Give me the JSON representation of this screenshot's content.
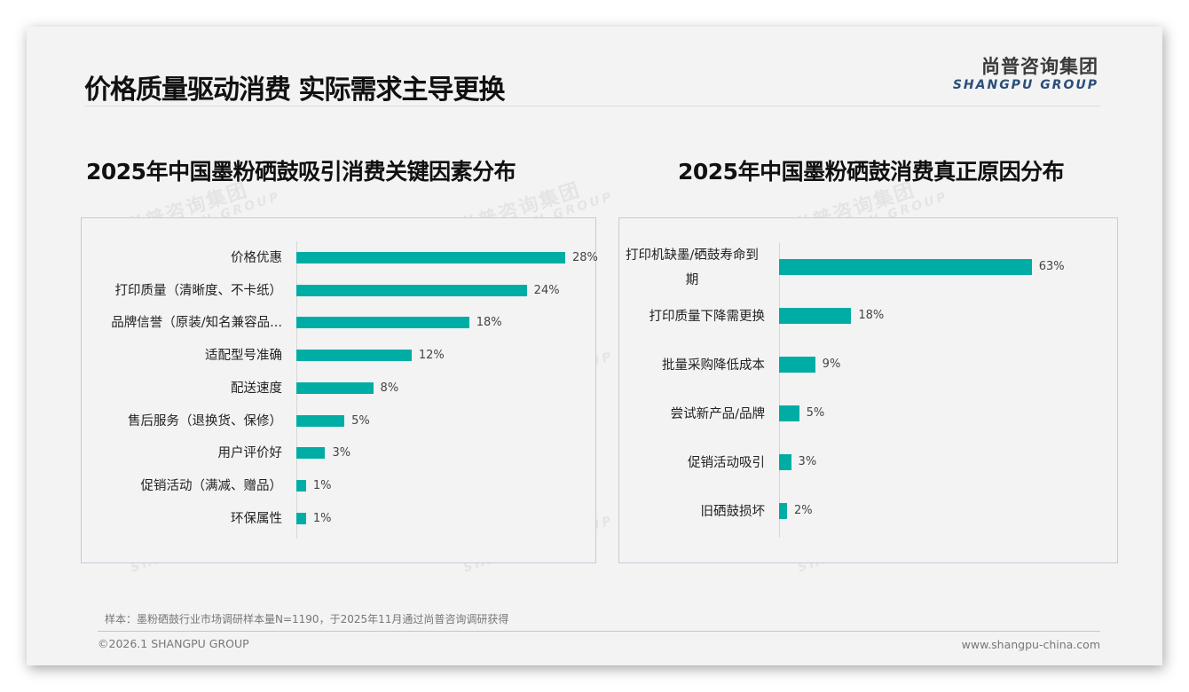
{
  "page": {
    "title": "价格质量驱动消费 实际需求主导更换",
    "logo": {
      "cn": "尚普咨询集团",
      "en": "SHANGPU GROUP"
    },
    "watermark": {
      "cn": "尚普咨询集团",
      "en": "SHANGPU GROUP"
    },
    "source": "样本：墨粉硒鼓行业市场调研样本量N=1190，于2025年11月通过尚普咨询调研获得",
    "footer_left": "©2026.1 SHANGPU GROUP",
    "footer_right": "www.shangpu-china.com",
    "colors": {
      "bar": "#00ada5",
      "title": "#111111",
      "logo_en": "#2b4f7a",
      "panel_border": "#c3ccd8",
      "background": "#f3f3f3"
    }
  },
  "chart_data": [
    {
      "type": "bar",
      "orientation": "horizontal",
      "title": "2025年中国墨粉硒鼓吸引消费关键因素分布",
      "categories": [
        "价格优惠",
        "打印质量（清晰度、不卡纸）",
        "品牌信誉（原装/知名兼容品...",
        "适配型号准确",
        "配送速度",
        "售后服务（退换货、保修）",
        "用户评价好",
        "促销活动（满减、赠品）",
        "环保属性"
      ],
      "values": [
        28,
        24,
        18,
        12,
        8,
        5,
        3,
        1,
        1
      ],
      "labels": [
        "28%",
        "24%",
        "18%",
        "12%",
        "8%",
        "5%",
        "3%",
        "1%",
        "1%"
      ],
      "unit": "%",
      "xlabel": "",
      "ylabel": "",
      "grid": false,
      "legend": null,
      "color": "#00ada5"
    },
    {
      "type": "bar",
      "orientation": "horizontal",
      "title": "2025年中国墨粉硒鼓消费真正原因分布",
      "categories": [
        "打印机缺墨/硒鼓寿命到期",
        "打印质量下降需更换",
        "批量采购降低成本",
        "尝试新产品/品牌",
        "促销活动吸引",
        "旧硒鼓损坏"
      ],
      "values": [
        63,
        18,
        9,
        5,
        3,
        2
      ],
      "labels": [
        "63%",
        "18%",
        "9%",
        "5%",
        "3%",
        "2%"
      ],
      "unit": "%",
      "xlabel": "",
      "ylabel": "",
      "grid": false,
      "legend": null,
      "color": "#00ada5"
    }
  ]
}
